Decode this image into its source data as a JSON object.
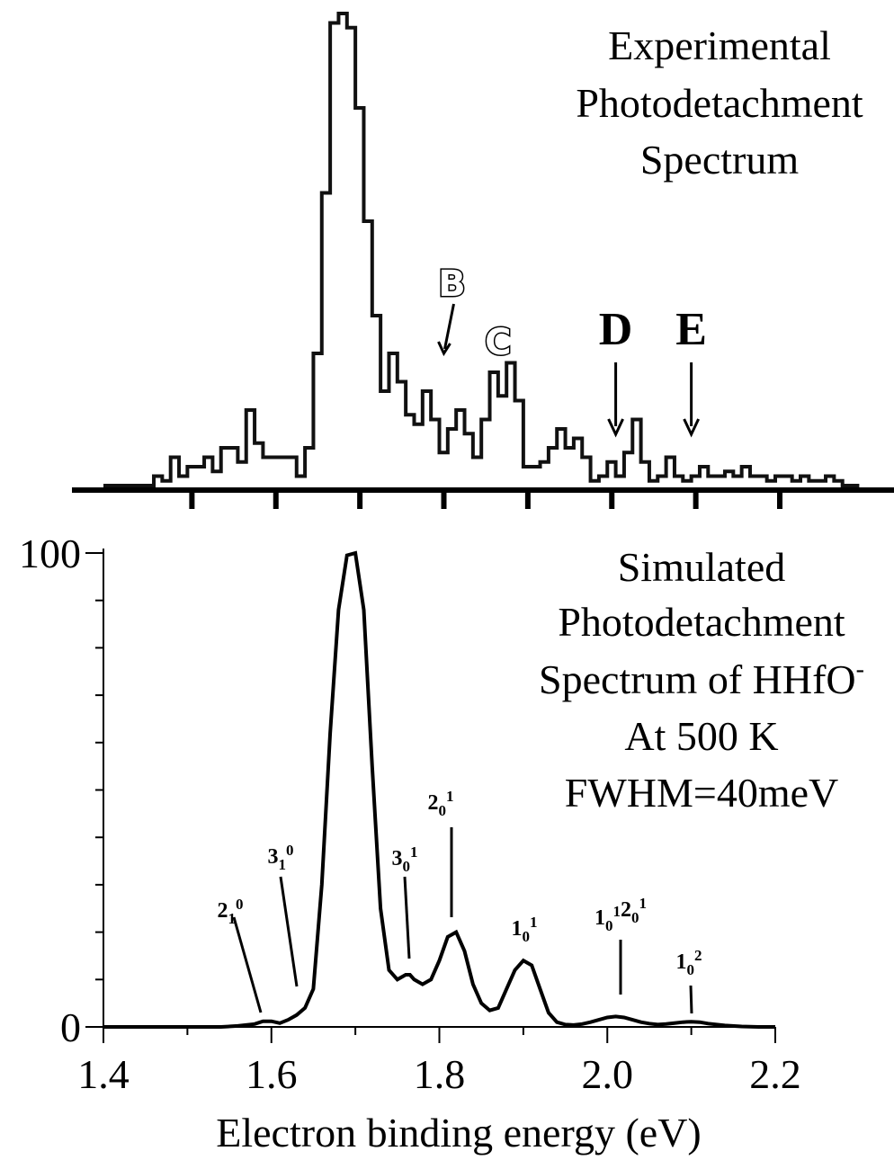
{
  "chart_data": [
    {
      "panel": "top",
      "type": "line",
      "title_lines": [
        "Experimental",
        "Photodetachment",
        "Spectrum"
      ],
      "x": [
        1.4,
        1.45,
        1.46,
        1.47,
        1.48,
        1.49,
        1.5,
        1.51,
        1.52,
        1.53,
        1.54,
        1.56,
        1.57,
        1.58,
        1.59,
        1.6,
        1.62,
        1.63,
        1.64,
        1.65,
        1.66,
        1.67,
        1.68,
        1.69,
        1.7,
        1.71,
        1.72,
        1.73,
        1.74,
        1.75,
        1.76,
        1.77,
        1.78,
        1.79,
        1.8,
        1.81,
        1.82,
        1.83,
        1.84,
        1.85,
        1.86,
        1.87,
        1.88,
        1.89,
        1.9,
        1.91,
        1.92,
        1.93,
        1.94,
        1.95,
        1.96,
        1.97,
        1.98,
        1.99,
        2.0,
        2.01,
        2.02,
        2.03,
        2.04,
        2.05,
        2.06,
        2.07,
        2.08,
        2.09,
        2.1,
        2.11,
        2.12,
        2.13,
        2.14,
        2.15,
        2.16,
        2.17,
        2.18,
        2.19,
        2.2,
        2.21,
        2.22,
        2.23,
        2.24,
        2.25,
        2.26,
        2.27,
        2.28,
        2.29,
        2.3
      ],
      "y": [
        0,
        0,
        2,
        1,
        6,
        2,
        4,
        4,
        6,
        3,
        8,
        5,
        16,
        9,
        6,
        6,
        6,
        2,
        8,
        28,
        62,
        98,
        100,
        97,
        80,
        56,
        36,
        20,
        28,
        22,
        15,
        13,
        20,
        14,
        7,
        12,
        16,
        11,
        6,
        14,
        24,
        19,
        26,
        18,
        4,
        4,
        5,
        8,
        12,
        8,
        10,
        6,
        1,
        2,
        5,
        2,
        7,
        14,
        5,
        1,
        2,
        6,
        2,
        1,
        2,
        4,
        2,
        2,
        3,
        2,
        4,
        2,
        2,
        1,
        2,
        2,
        1,
        2,
        1,
        1,
        2,
        1,
        0,
        0,
        0
      ],
      "ylim": [
        0,
        100
      ],
      "xlim": [
        1.4,
        2.3
      ],
      "annotations": [
        {
          "label": "B",
          "x": 1.8,
          "style": "outlined"
        },
        {
          "label": "C",
          "x": 1.87,
          "style": "outlined"
        },
        {
          "label": "D",
          "x": 2.01,
          "style": "bold"
        },
        {
          "label": "E",
          "x": 2.1,
          "style": "bold"
        }
      ]
    },
    {
      "panel": "bottom",
      "type": "line",
      "title_lines": [
        "Simulated",
        "Photodetachment",
        "Spectrum of HHfO",
        "At 500 K",
        "FWHM=40meV"
      ],
      "title_superscript": "-",
      "xlabel": "Electron binding energy (eV)",
      "ylabel": "",
      "xlim": [
        1.4,
        2.2
      ],
      "ylim": [
        0,
        100
      ],
      "xticks": [
        "1.4",
        "1.6",
        "1.8",
        "2.0",
        "2.2"
      ],
      "yticks": [
        "0",
        "100"
      ],
      "x": [
        1.4,
        1.42,
        1.44,
        1.46,
        1.48,
        1.5,
        1.52,
        1.54,
        1.56,
        1.58,
        1.59,
        1.6,
        1.61,
        1.62,
        1.63,
        1.64,
        1.65,
        1.66,
        1.67,
        1.68,
        1.69,
        1.7,
        1.71,
        1.72,
        1.73,
        1.74,
        1.75,
        1.76,
        1.765,
        1.77,
        1.78,
        1.79,
        1.8,
        1.81,
        1.82,
        1.83,
        1.84,
        1.85,
        1.86,
        1.87,
        1.88,
        1.89,
        1.9,
        1.91,
        1.92,
        1.93,
        1.94,
        1.95,
        1.96,
        1.97,
        1.98,
        1.99,
        2.0,
        2.01,
        2.02,
        2.03,
        2.04,
        2.05,
        2.06,
        2.07,
        2.08,
        2.09,
        2.1,
        2.11,
        2.12,
        2.14,
        2.16,
        2.18,
        2.2
      ],
      "y": [
        0,
        0,
        0,
        0,
        0,
        0,
        0,
        0,
        0.2,
        0.6,
        1.2,
        1.2,
        0.8,
        1.5,
        2.5,
        4,
        8,
        30,
        62,
        88,
        99.5,
        100,
        88,
        55,
        25,
        12,
        10,
        11,
        11,
        10,
        9,
        10,
        14,
        19,
        20,
        16,
        9,
        5,
        3.5,
        4,
        8,
        12,
        14,
        13,
        8,
        3,
        1,
        0.5,
        0.4,
        0.6,
        1,
        1.5,
        2,
        2.2,
        2.0,
        1.5,
        1.0,
        0.7,
        0.5,
        0.6,
        0.8,
        1.0,
        1.1,
        1.0,
        0.7,
        0.3,
        0.1,
        0,
        0
      ],
      "annotations": [
        {
          "label_base": "2",
          "sub": "1",
          "sup": "0",
          "peak_x": 1.59
        },
        {
          "label_base": "3",
          "sub": "1",
          "sup": "0",
          "peak_x": 1.63
        },
        {
          "label_base": "3",
          "sub": "0",
          "sup": "1",
          "peak_x": 1.765
        },
        {
          "label_base": "2",
          "sub": "0",
          "sup": "1",
          "peak_x": 1.815
        },
        {
          "label_base": "1",
          "sub": "0",
          "sup": "1",
          "peak_x": 1.905
        },
        {
          "label_base": "1",
          "sub": "0",
          "sup": "1",
          "label_base2": "2",
          "sub2": "0",
          "sup2": "1",
          "peak_x": 2.015
        },
        {
          "label_base": "1",
          "sub": "0",
          "sup": "2",
          "peak_x": 2.1
        }
      ]
    }
  ]
}
